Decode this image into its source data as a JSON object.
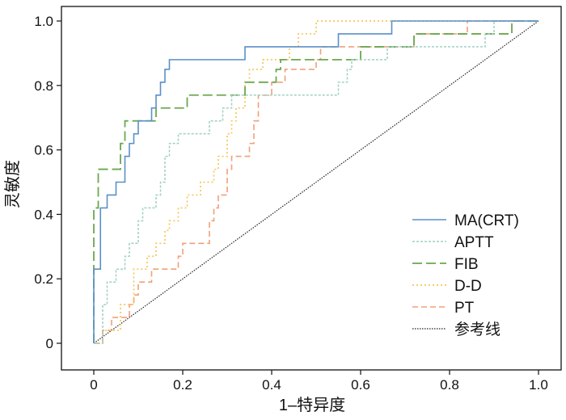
{
  "chart_data": {
    "type": "line",
    "title": "",
    "xlabel": "1–特异度",
    "ylabel": "灵敏度",
    "xlim": [
      -0.02,
      1.02
    ],
    "ylim": [
      -0.025,
      1.0
    ],
    "x_ticks": [
      "0",
      "0.2",
      "0.4",
      "0.6",
      "0.8",
      "1.0"
    ],
    "y_ticks": [
      "0",
      "0.2",
      "0.4",
      "0.6",
      "0.8",
      "1.0"
    ],
    "grid": false,
    "legend": "bottom-right",
    "series": [
      {
        "name": "MA(CRT)",
        "color": "#5b8fc9",
        "dash": "solid",
        "points": [
          [
            0,
            0
          ],
          [
            0,
            0.23
          ],
          [
            0.015,
            0.23
          ],
          [
            0.015,
            0.42
          ],
          [
            0.03,
            0.42
          ],
          [
            0.03,
            0.46
          ],
          [
            0.05,
            0.46
          ],
          [
            0.05,
            0.5
          ],
          [
            0.07,
            0.5
          ],
          [
            0.07,
            0.58
          ],
          [
            0.08,
            0.58
          ],
          [
            0.08,
            0.62
          ],
          [
            0.09,
            0.62
          ],
          [
            0.09,
            0.65
          ],
          [
            0.1,
            0.65
          ],
          [
            0.1,
            0.69
          ],
          [
            0.13,
            0.69
          ],
          [
            0.13,
            0.73
          ],
          [
            0.14,
            0.73
          ],
          [
            0.14,
            0.77
          ],
          [
            0.15,
            0.77
          ],
          [
            0.15,
            0.81
          ],
          [
            0.16,
            0.81
          ],
          [
            0.16,
            0.85
          ],
          [
            0.17,
            0.85
          ],
          [
            0.17,
            0.88
          ],
          [
            0.34,
            0.88
          ],
          [
            0.34,
            0.92
          ],
          [
            0.55,
            0.92
          ],
          [
            0.55,
            0.96
          ],
          [
            0.67,
            0.96
          ],
          [
            0.67,
            1.0
          ],
          [
            1.0,
            1.0
          ]
        ]
      },
      {
        "name": "APTT",
        "color": "#9fd0c4",
        "dash": "short",
        "points": [
          [
            0,
            0
          ],
          [
            0.02,
            0
          ],
          [
            0.02,
            0.12
          ],
          [
            0.03,
            0.12
          ],
          [
            0.03,
            0.19
          ],
          [
            0.05,
            0.19
          ],
          [
            0.05,
            0.23
          ],
          [
            0.07,
            0.23
          ],
          [
            0.07,
            0.27
          ],
          [
            0.08,
            0.27
          ],
          [
            0.08,
            0.31
          ],
          [
            0.1,
            0.31
          ],
          [
            0.1,
            0.38
          ],
          [
            0.11,
            0.38
          ],
          [
            0.11,
            0.42
          ],
          [
            0.14,
            0.42
          ],
          [
            0.14,
            0.46
          ],
          [
            0.15,
            0.46
          ],
          [
            0.15,
            0.5
          ],
          [
            0.16,
            0.5
          ],
          [
            0.16,
            0.58
          ],
          [
            0.17,
            0.58
          ],
          [
            0.17,
            0.62
          ],
          [
            0.19,
            0.62
          ],
          [
            0.19,
            0.65
          ],
          [
            0.26,
            0.65
          ],
          [
            0.26,
            0.69
          ],
          [
            0.29,
            0.69
          ],
          [
            0.29,
            0.73
          ],
          [
            0.31,
            0.73
          ],
          [
            0.31,
            0.77
          ],
          [
            0.55,
            0.77
          ],
          [
            0.55,
            0.81
          ],
          [
            0.57,
            0.81
          ],
          [
            0.57,
            0.85
          ],
          [
            0.58,
            0.85
          ],
          [
            0.58,
            0.88
          ],
          [
            0.66,
            0.88
          ],
          [
            0.66,
            0.92
          ],
          [
            0.88,
            0.92
          ],
          [
            0.88,
            0.96
          ],
          [
            0.9,
            0.96
          ],
          [
            0.9,
            1.0
          ],
          [
            1.0,
            1.0
          ]
        ]
      },
      {
        "name": "FIB",
        "color": "#6aa84f",
        "dash": "long",
        "points": [
          [
            0,
            0
          ],
          [
            0,
            0.42
          ],
          [
            0.01,
            0.42
          ],
          [
            0.01,
            0.54
          ],
          [
            0.06,
            0.54
          ],
          [
            0.06,
            0.62
          ],
          [
            0.07,
            0.62
          ],
          [
            0.07,
            0.69
          ],
          [
            0.14,
            0.69
          ],
          [
            0.14,
            0.73
          ],
          [
            0.21,
            0.73
          ],
          [
            0.21,
            0.77
          ],
          [
            0.34,
            0.77
          ],
          [
            0.34,
            0.81
          ],
          [
            0.41,
            0.81
          ],
          [
            0.41,
            0.85
          ],
          [
            0.42,
            0.85
          ],
          [
            0.42,
            0.88
          ],
          [
            0.6,
            0.88
          ],
          [
            0.6,
            0.92
          ],
          [
            0.72,
            0.92
          ],
          [
            0.72,
            0.96
          ],
          [
            0.94,
            0.96
          ],
          [
            0.94,
            1.0
          ],
          [
            1.0,
            1.0
          ]
        ]
      },
      {
        "name": "D-D",
        "color": "#f6c75a",
        "dash": "dot",
        "points": [
          [
            0,
            0
          ],
          [
            0.02,
            0
          ],
          [
            0.02,
            0.04
          ],
          [
            0.06,
            0.04
          ],
          [
            0.06,
            0.12
          ],
          [
            0.09,
            0.12
          ],
          [
            0.09,
            0.23
          ],
          [
            0.12,
            0.23
          ],
          [
            0.12,
            0.27
          ],
          [
            0.14,
            0.27
          ],
          [
            0.14,
            0.31
          ],
          [
            0.16,
            0.31
          ],
          [
            0.16,
            0.35
          ],
          [
            0.17,
            0.35
          ],
          [
            0.17,
            0.38
          ],
          [
            0.19,
            0.38
          ],
          [
            0.19,
            0.42
          ],
          [
            0.21,
            0.42
          ],
          [
            0.21,
            0.46
          ],
          [
            0.24,
            0.46
          ],
          [
            0.24,
            0.5
          ],
          [
            0.27,
            0.5
          ],
          [
            0.27,
            0.54
          ],
          [
            0.28,
            0.54
          ],
          [
            0.28,
            0.58
          ],
          [
            0.3,
            0.58
          ],
          [
            0.3,
            0.65
          ],
          [
            0.31,
            0.65
          ],
          [
            0.31,
            0.69
          ],
          [
            0.32,
            0.69
          ],
          [
            0.32,
            0.73
          ],
          [
            0.34,
            0.73
          ],
          [
            0.34,
            0.81
          ],
          [
            0.35,
            0.81
          ],
          [
            0.35,
            0.85
          ],
          [
            0.38,
            0.85
          ],
          [
            0.38,
            0.88
          ],
          [
            0.44,
            0.88
          ],
          [
            0.44,
            0.92
          ],
          [
            0.46,
            0.92
          ],
          [
            0.46,
            0.96
          ],
          [
            0.5,
            0.96
          ],
          [
            0.5,
            1.0
          ],
          [
            1.0,
            1.0
          ]
        ]
      },
      {
        "name": "PT",
        "color": "#f0a07a",
        "dash": "medium",
        "points": [
          [
            0,
            0
          ],
          [
            0.02,
            0
          ],
          [
            0.02,
            0.04
          ],
          [
            0.04,
            0.04
          ],
          [
            0.04,
            0.08
          ],
          [
            0.08,
            0.08
          ],
          [
            0.08,
            0.12
          ],
          [
            0.09,
            0.12
          ],
          [
            0.09,
            0.15
          ],
          [
            0.1,
            0.15
          ],
          [
            0.1,
            0.19
          ],
          [
            0.13,
            0.19
          ],
          [
            0.13,
            0.23
          ],
          [
            0.19,
            0.23
          ],
          [
            0.19,
            0.27
          ],
          [
            0.2,
            0.27
          ],
          [
            0.2,
            0.31
          ],
          [
            0.26,
            0.31
          ],
          [
            0.26,
            0.38
          ],
          [
            0.27,
            0.38
          ],
          [
            0.27,
            0.42
          ],
          [
            0.28,
            0.42
          ],
          [
            0.28,
            0.46
          ],
          [
            0.3,
            0.46
          ],
          [
            0.3,
            0.54
          ],
          [
            0.31,
            0.54
          ],
          [
            0.31,
            0.58
          ],
          [
            0.35,
            0.58
          ],
          [
            0.35,
            0.62
          ],
          [
            0.36,
            0.62
          ],
          [
            0.36,
            0.69
          ],
          [
            0.37,
            0.69
          ],
          [
            0.37,
            0.77
          ],
          [
            0.4,
            0.77
          ],
          [
            0.4,
            0.81
          ],
          [
            0.43,
            0.81
          ],
          [
            0.43,
            0.85
          ],
          [
            0.5,
            0.85
          ],
          [
            0.5,
            0.88
          ],
          [
            0.51,
            0.88
          ],
          [
            0.51,
            0.92
          ],
          [
            0.72,
            0.92
          ],
          [
            0.72,
            0.96
          ],
          [
            0.84,
            0.96
          ],
          [
            0.84,
            1.0
          ],
          [
            1.0,
            1.0
          ]
        ]
      },
      {
        "name": "参考线",
        "color": "#222222",
        "dash": "fine-dot",
        "points": [
          [
            0,
            0
          ],
          [
            1,
            1
          ]
        ]
      }
    ]
  }
}
